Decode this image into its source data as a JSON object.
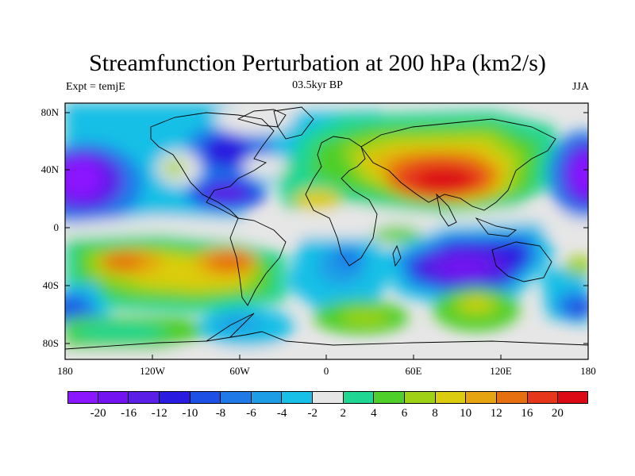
{
  "title": "Streamfunction Perturbation at 200 hPa (km2/s)",
  "left_label": "Expt = temjE",
  "center_label": "03.5kyr BP",
  "right_label": "JJA",
  "lat_labels": [
    "80N",
    "40N",
    "0",
    "40S",
    "80S"
  ],
  "lon_labels": [
    "180",
    "120W",
    "60W",
    "0",
    "60E",
    "120E",
    "180"
  ],
  "colorbar": {
    "colors": [
      "#8b17ff",
      "#7413f2",
      "#5a1ee6",
      "#2a1be0",
      "#1e50e6",
      "#1f7ae8",
      "#1c9de6",
      "#18bfe6",
      "#e6e6e6",
      "#1fd692",
      "#4ecf2a",
      "#9fd216",
      "#dccc10",
      "#e6a510",
      "#e66f10",
      "#e6371a",
      "#dc0a14"
    ],
    "labels": [
      "-20",
      "-16",
      "-12",
      "-10",
      "-8",
      "-6",
      "-4",
      "-2",
      "2",
      "4",
      "6",
      "8",
      "10",
      "12",
      "16",
      "20"
    ]
  },
  "colors": {
    "land_outline": "#000000",
    "background_field": "#e6e6e6"
  }
}
